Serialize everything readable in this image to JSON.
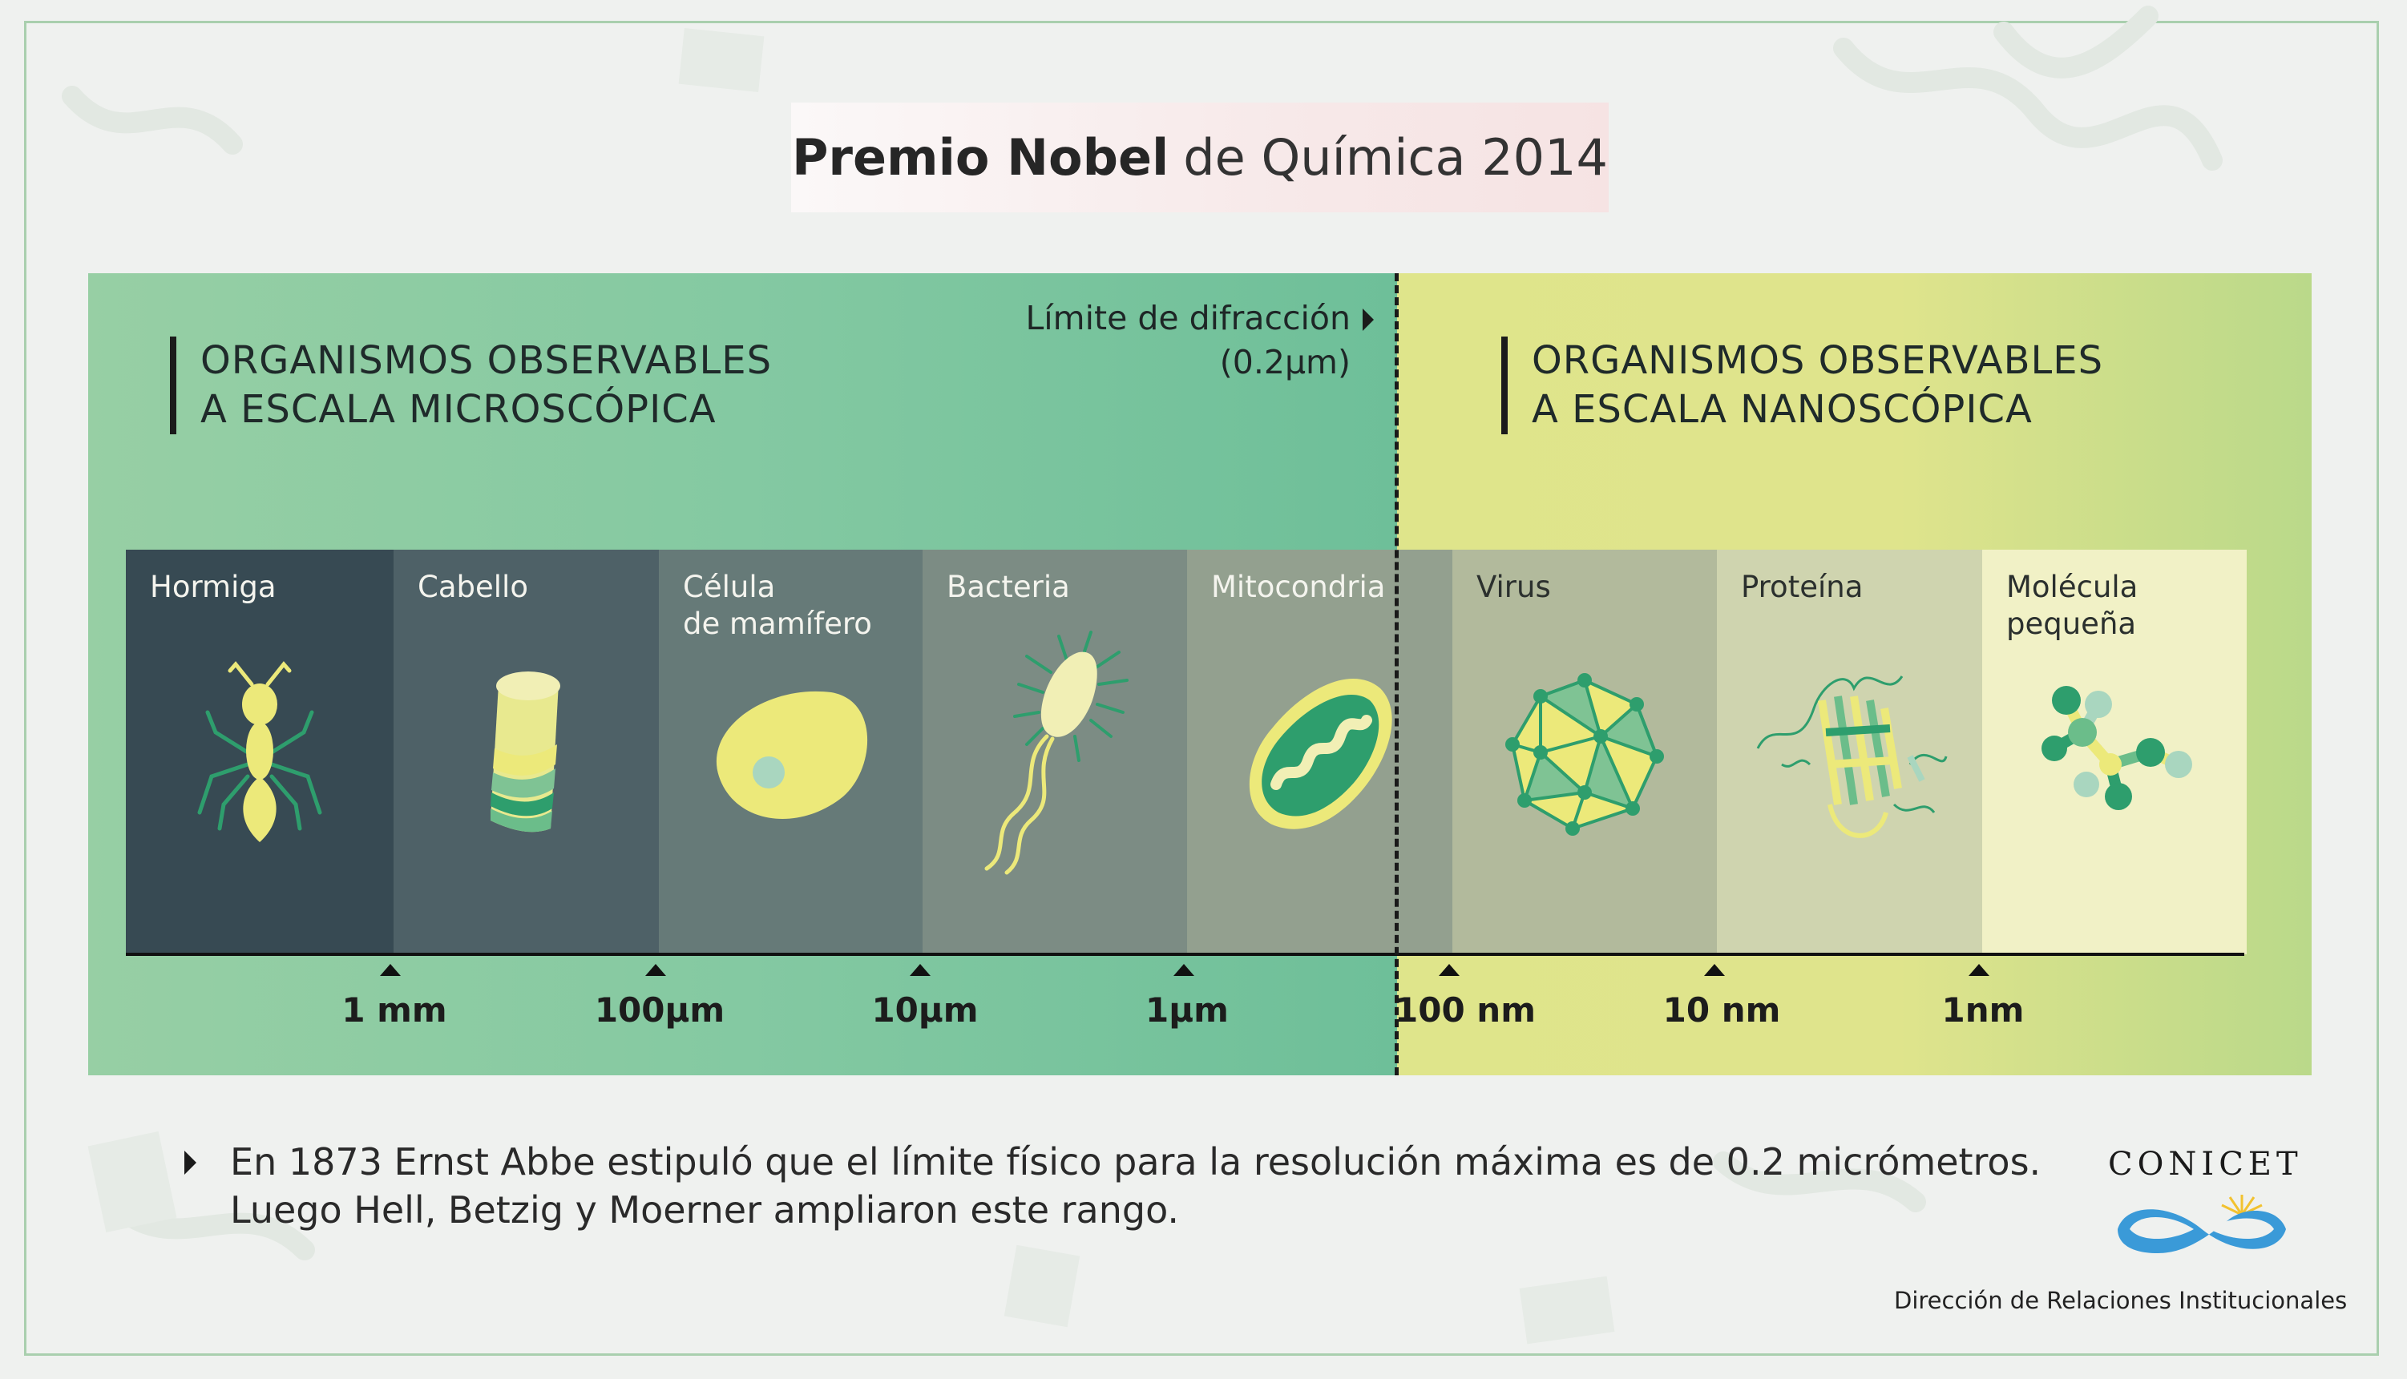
{
  "title": {
    "bold": "Premio Nobel",
    "rest": "de Química 2014"
  },
  "left_heading": [
    "ORGANISMOS OBSERVABLES",
    "A ESCALA MICROSCÓPICA"
  ],
  "right_heading": [
    "ORGANISMOS OBSERVABLES",
    "A ESCALA NANOSCÓPICA"
  ],
  "diffraction_limit": {
    "line1": "Límite de difracción",
    "line2": "(0.2µm)"
  },
  "organisms": [
    {
      "lines": [
        "Hormiga"
      ],
      "icon": "ant-icon",
      "color": "#374a53"
    },
    {
      "lines": [
        "Cabello"
      ],
      "icon": "hair-icon",
      "color": "#4e6167"
    },
    {
      "lines": [
        "Célula",
        "de mamífero"
      ],
      "icon": "cell-icon",
      "color": "#667a78"
    },
    {
      "lines": [
        "Bacteria"
      ],
      "icon": "bacteria-icon",
      "color": "#7c8c84"
    },
    {
      "lines": [
        "Mitocondria"
      ],
      "icon": "mitochondria-icon",
      "color": "#93a08f"
    },
    {
      "lines": [
        "Virus"
      ],
      "icon": "virus-icon",
      "color": "#b2ba9c"
    },
    {
      "lines": [
        "Proteína"
      ],
      "icon": "protein-icon",
      "color": "#cfd4af"
    },
    {
      "lines": [
        "Molécula",
        "pequeña"
      ],
      "icon": "molecule-icon",
      "color": "#f1f1c6"
    }
  ],
  "scale_ticks": [
    "1 mm",
    "100µm",
    "10µm",
    "1µm",
    "100 nm",
    "10 nm",
    "1nm"
  ],
  "note": [
    "En 1873 Ernst Abbe estipuló que el límite físico para la resolución máxima es de 0.2 micrómetros.",
    "Luego Hell, Betzig y Moerner ampliaron este rango."
  ],
  "logo": {
    "name": "CONICET",
    "department": "Dirección de Relaciones Institucionales"
  },
  "colors": {
    "panel_left": "#84c9a2",
    "panel_right": "#dfe48c",
    "illustration_yellow": "#ece97a",
    "illustration_green": "#2e9e6d"
  }
}
